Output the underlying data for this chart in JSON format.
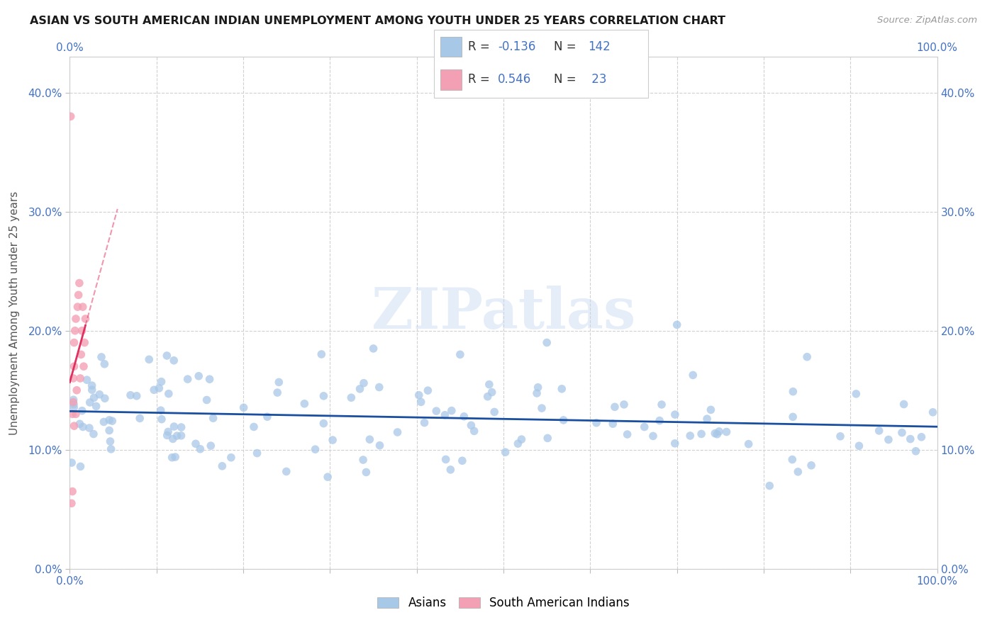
{
  "title": "ASIAN VS SOUTH AMERICAN INDIAN UNEMPLOYMENT AMONG YOUTH UNDER 25 YEARS CORRELATION CHART",
  "source": "Source: ZipAtlas.com",
  "ylabel": "Unemployment Among Youth under 25 years",
  "watermark": "ZIPatlas",
  "asian_R": -0.136,
  "asian_N": 142,
  "asian_color": "#a8c8e8",
  "asian_line_color": "#1a4fa0",
  "sa_indian_R": 0.546,
  "sa_indian_N": 23,
  "sa_indian_color": "#f4a0b4",
  "sa_indian_line_color": "#e03060",
  "xlim": [
    0.0,
    1.0
  ],
  "ylim": [
    0.0,
    0.43
  ],
  "xticks": [
    0.0,
    0.1,
    0.2,
    0.3,
    0.4,
    0.5,
    0.6,
    0.7,
    0.8,
    0.9,
    1.0
  ],
  "yticks": [
    0.0,
    0.1,
    0.2,
    0.3,
    0.4
  ],
  "background_color": "#ffffff",
  "grid_color": "#d0d0d0",
  "legend_asian_label": "R = -0.136   N = 142",
  "legend_sai_label": "R =  0.546   N =  23",
  "bottom_legend_asian": "Asians",
  "bottom_legend_sai": "South American Indians"
}
